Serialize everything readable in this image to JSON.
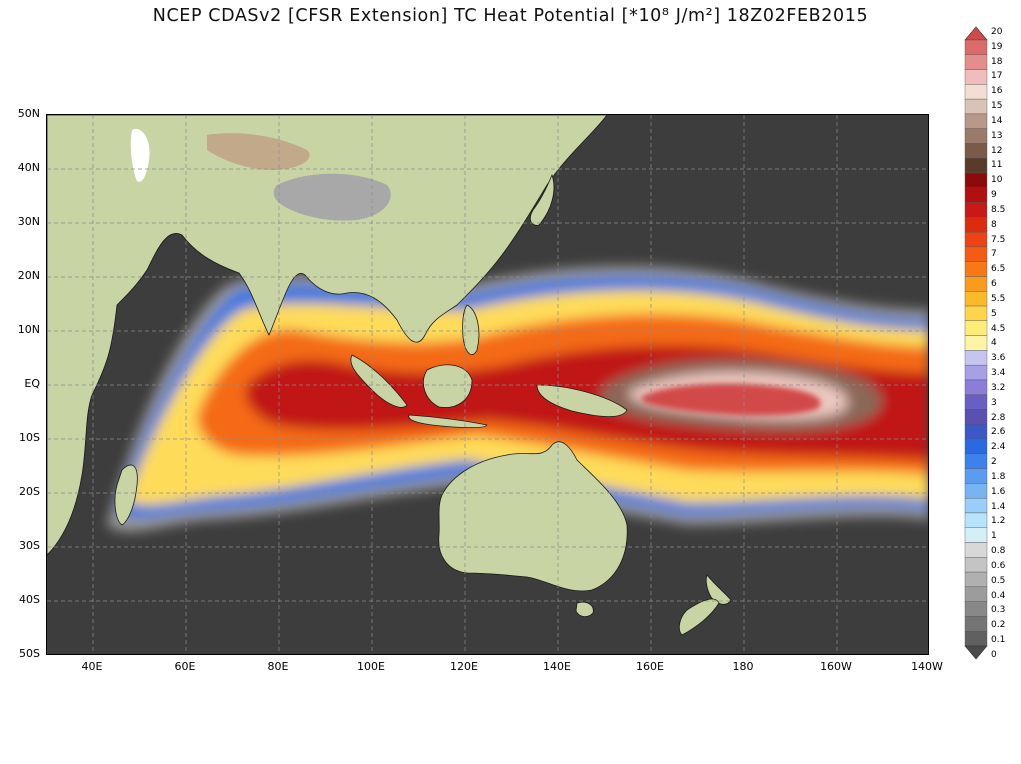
{
  "title": "NCEP CDASv2 [CFSR Extension] TC Heat Potential [*10⁸ J/m²] 18Z02FEB2015",
  "map": {
    "projection": "cylindrical equidistant",
    "lon_range": [
      "30E",
      "140W"
    ],
    "lat_range": [
      "50S",
      "50N"
    ],
    "grid": "dashed",
    "land_colors": [
      "#c9d4a4",
      "#a9b98a",
      "#c2a98a",
      "#9a8a7a",
      "#ffffff"
    ],
    "ocean_cold_color": "#3d3d3d",
    "regions": [
      "Indian Ocean",
      "Maritime Continent",
      "Western Pacific",
      "Australia",
      "New Zealand",
      "Madagascar",
      "Tibetan Plateau"
    ]
  },
  "axes": {
    "lat_labels": [
      "50N",
      "40N",
      "30N",
      "20N",
      "10N",
      "EQ",
      "10S",
      "20S",
      "30S",
      "40S",
      "50S"
    ],
    "lon_labels": [
      "40E",
      "60E",
      "80E",
      "100E",
      "120E",
      "140E",
      "160E",
      "180",
      "160W",
      "140W"
    ]
  },
  "colorbar": {
    "labels": [
      "20",
      "19",
      "18",
      "17",
      "16",
      "15",
      "14",
      "13",
      "12",
      "11",
      "10",
      "9",
      "8.5",
      "8",
      "7.5",
      "7",
      "6.5",
      "6",
      "5.5",
      "5",
      "4.5",
      "4",
      "3.6",
      "3.4",
      "3.2",
      "3",
      "2.8",
      "2.6",
      "2.4",
      "2",
      "1.8",
      "1.6",
      "1.4",
      "1.2",
      "1",
      "0.8",
      "0.6",
      "0.5",
      "0.4",
      "0.3",
      "0.2",
      "0.1",
      "0"
    ],
    "colors": [
      "#d24a4a",
      "#db6a6a",
      "#e58c8c",
      "#f0bcbc",
      "#f3ddd5",
      "#d9c2b8",
      "#b89888",
      "#9a7a6a",
      "#7a5a4a",
      "#5a3a2a",
      "#8c0a0a",
      "#b01010",
      "#c81818",
      "#dc2c10",
      "#ec4414",
      "#f45c14",
      "#f87818",
      "#fa9a1e",
      "#fcba2a",
      "#fed44a",
      "#feec7a",
      "#fff4a4",
      "#c8c4f0",
      "#a8a0e6",
      "#8c7ed8",
      "#6a5ec4",
      "#5a50b0",
      "#3c58c8",
      "#2a6ae0",
      "#3c82ec",
      "#5c9cf0",
      "#78b4f4",
      "#98cef8",
      "#b6e4fa",
      "#d4f0f6",
      "#d8d8d8",
      "#c4c4c4",
      "#b0b0b0",
      "#9c9c9c",
      "#888888",
      "#747474",
      "#606060",
      "#4a4a4a"
    ]
  }
}
